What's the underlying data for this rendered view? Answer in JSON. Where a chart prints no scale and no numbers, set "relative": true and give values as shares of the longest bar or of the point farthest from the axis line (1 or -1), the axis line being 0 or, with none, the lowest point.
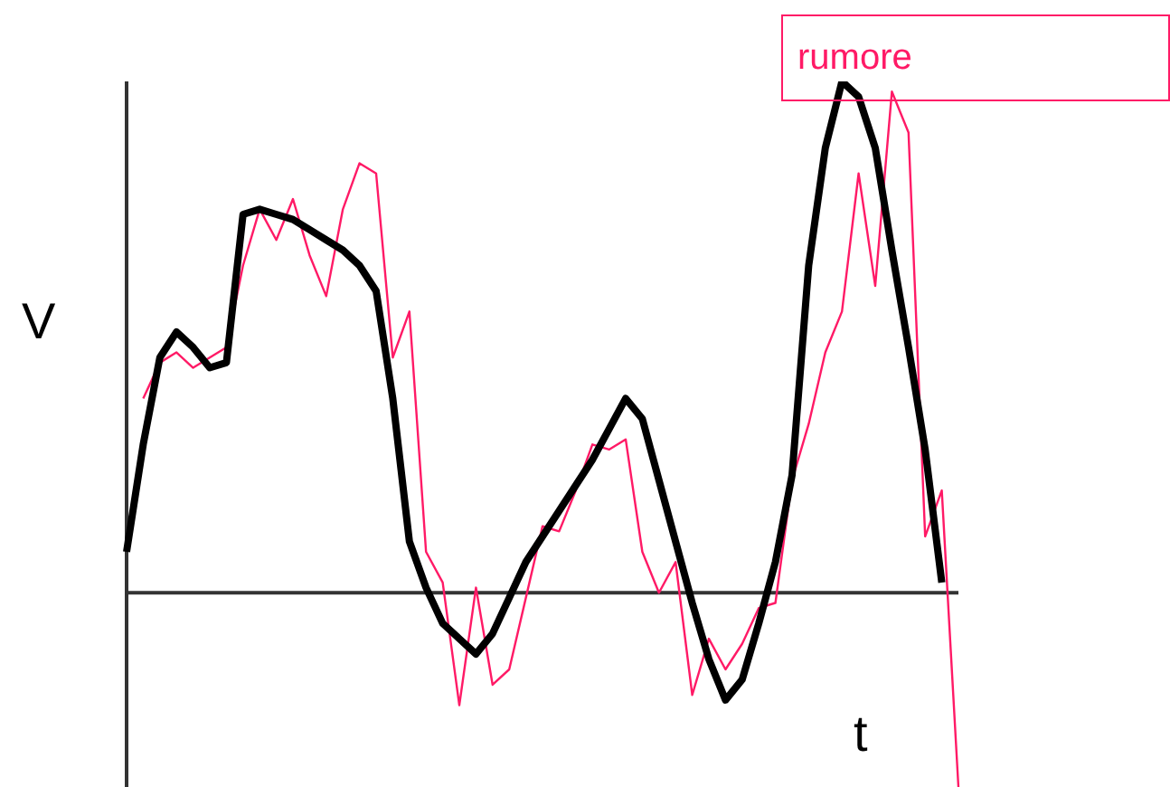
{
  "chart_data": {
    "type": "line",
    "relative": true,
    "xlabel": "t",
    "ylabel": "V",
    "categories": [
      null,
      null,
      null,
      null,
      null,
      null,
      null,
      null,
      null,
      null,
      null,
      null,
      null,
      null,
      null,
      null,
      null,
      null,
      null,
      null,
      null,
      null,
      null,
      null,
      null,
      null,
      null,
      null,
      null,
      null,
      null,
      null,
      null,
      null,
      null,
      null,
      null,
      null,
      null,
      null,
      null,
      null,
      null,
      null,
      null,
      null,
      null,
      null,
      null,
      null,
      null
    ],
    "series": [
      {
        "name": "rumore",
        "color": "#ff1a66",
        "values": [
          null,
          0.38,
          0.45,
          0.47,
          0.44,
          0.46,
          0.48,
          0.64,
          0.75,
          0.69,
          0.77,
          0.66,
          0.58,
          0.75,
          0.84,
          0.82,
          0.46,
          0.55,
          0.08,
          0.02,
          -0.22,
          0.01,
          -0.18,
          -0.15,
          -0.01,
          0.13,
          0.12,
          0.2,
          0.29,
          0.28,
          0.3,
          0.08,
          0.0,
          0.06,
          -0.2,
          -0.09,
          -0.15,
          -0.1,
          -0.03,
          -0.02,
          0.22,
          0.33,
          0.47,
          0.55,
          0.82,
          0.6,
          0.98,
          0.9,
          0.11,
          0.2,
          -0.38
        ]
      },
      {
        "color": "#000000",
        "values": [
          0.08,
          0.29,
          0.46,
          0.51,
          0.48,
          0.44,
          0.45,
          0.74,
          0.75,
          0.74,
          0.73,
          0.71,
          0.69,
          0.67,
          0.64,
          0.59,
          0.38,
          0.1,
          0.01,
          -0.06,
          -0.09,
          -0.12,
          -0.08,
          -0.01,
          0.06,
          0.11,
          0.16,
          0.21,
          0.26,
          0.32,
          0.38,
          0.34,
          0.22,
          0.1,
          -0.02,
          -0.13,
          -0.21,
          -0.17,
          -0.06,
          0.06,
          0.23,
          0.64,
          0.87,
          1.0,
          0.97,
          0.87,
          0.67,
          0.48,
          0.28,
          0.02,
          null
        ]
      }
    ]
  }
}
